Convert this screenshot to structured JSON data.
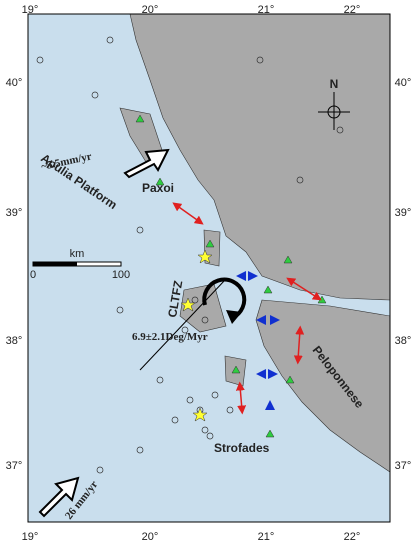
{
  "map": {
    "lon_labels": [
      "19°",
      "20°",
      "21°",
      "22°"
    ],
    "lat_labels": [
      "40°",
      "39°",
      "38°",
      "37°"
    ],
    "labels": {
      "velocity_top": "~5.5mm/yr",
      "paxoi": "Paxoi",
      "apulia": "Apulia Platform",
      "cltfz": "CLTFZ",
      "rotation": "6.9±2.1Deg/Myr",
      "peloponnese": "Peloponnese",
      "strofades": "Strofades",
      "velocity_bottom": "26 mm/yr",
      "north": "N"
    },
    "scale": {
      "unit": "km",
      "start": "0",
      "end": "100"
    }
  }
}
